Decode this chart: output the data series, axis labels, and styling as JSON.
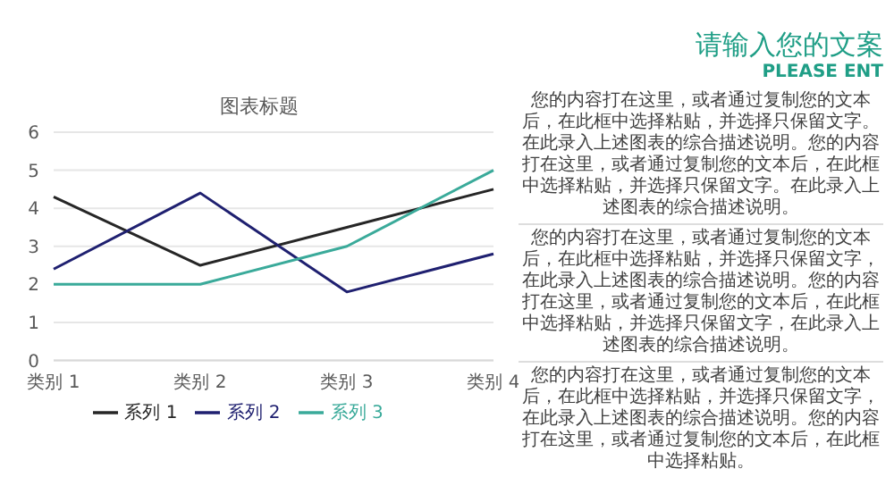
{
  "chart_data": {
    "type": "line",
    "title": "图表标题",
    "categories": [
      "类别 1",
      "类别 2",
      "类别 3",
      "类别 4"
    ],
    "series": [
      {
        "name": "系列 1",
        "color": "#262626",
        "values": [
          4.3,
          2.5,
          3.5,
          4.5
        ]
      },
      {
        "name": "系列 2",
        "color": "#1f2070",
        "values": [
          2.4,
          4.4,
          1.8,
          2.8
        ]
      },
      {
        "name": "系列 3",
        "color": "#3aaa9a",
        "values": [
          2,
          2,
          3,
          5
        ]
      }
    ],
    "ylim": [
      0,
      6
    ],
    "yticks": [
      0,
      1,
      2,
      3,
      4,
      5,
      6
    ],
    "grid": "y",
    "legend": "bottom",
    "marker": "none",
    "annotations": [
      "请输入您的文案",
      "PLEASE ENT",
      "您的内容打在这里，或者通过复制您的文本后，在此框中选择粘贴，并选择只保留文字。在此录入上述图表的综合描述说明。您的内容打在这里，或者通过复制您的文本后，在此框中选择粘贴，并选择只保留文字。在此录入上述图表的综合描述说明。",
      "您的内容打在这里，或者通过复制您的文本后，在此框中选择粘贴，并选择只保留文字，在此录入上述图表的综合描述说明。您的内容打在这里，或者通过复制您的文本后，在此框中选择粘贴，并选择只保留文字，在此录入上述图表的综合描述说明。",
      "您的内容打在这里，或者通过复制您的文本后，在此框中选择粘贴，并选择只保留文字，在此录入上述图表的综合描述说明。您的内容打在这里，或者通过复制您的文本后，在此框中选择粘贴。"
    ]
  }
}
